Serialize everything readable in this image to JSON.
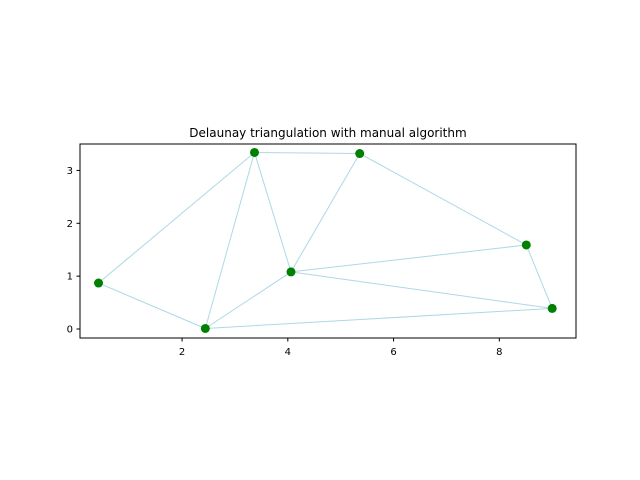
{
  "chart_data": {
    "type": "scatter",
    "title": "Delaunay triangulation with manual algorithm",
    "xlabel": "",
    "ylabel": "",
    "xlim": [
      0.07,
      9.45
    ],
    "ylim": [
      -0.17,
      3.5
    ],
    "xticks": [
      2,
      4,
      6,
      8
    ],
    "yticks": [
      0,
      1,
      2,
      3
    ],
    "grid": false,
    "aspect": "equal",
    "points": [
      {
        "x": 0.42,
        "y": 0.87
      },
      {
        "x": 2.44,
        "y": 0.01
      },
      {
        "x": 3.37,
        "y": 3.34
      },
      {
        "x": 5.36,
        "y": 3.32
      },
      {
        "x": 4.06,
        "y": 1.08
      },
      {
        "x": 8.51,
        "y": 1.59
      },
      {
        "x": 9.0,
        "y": 0.39
      }
    ],
    "edges": [
      [
        0,
        1
      ],
      [
        0,
        2
      ],
      [
        1,
        2
      ],
      [
        1,
        4
      ],
      [
        1,
        6
      ],
      [
        2,
        3
      ],
      [
        2,
        4
      ],
      [
        3,
        4
      ],
      [
        3,
        5
      ],
      [
        4,
        5
      ],
      [
        4,
        6
      ],
      [
        5,
        6
      ]
    ],
    "point_color": "#008000",
    "edge_color": "#add8e6"
  }
}
